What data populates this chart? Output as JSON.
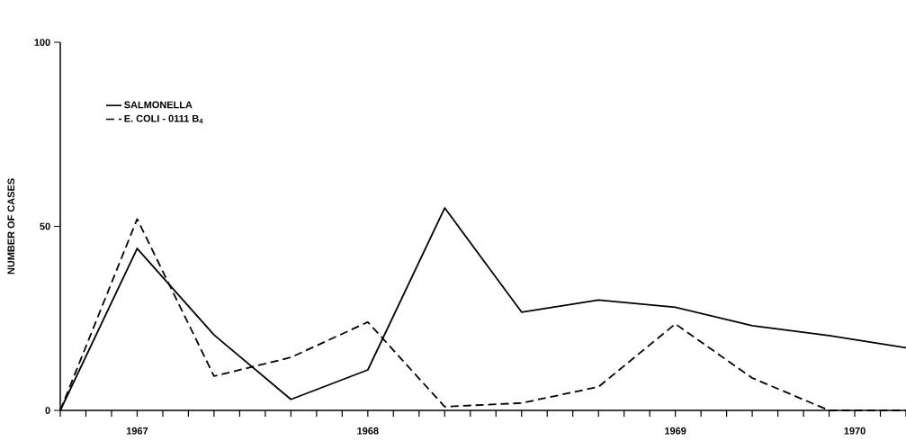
{
  "chart_data": {
    "type": "line",
    "ylabel": "NUMBER OF CASES",
    "x": [
      "1967-07",
      "1967-10",
      "1968-01",
      "1968-04",
      "1968-07",
      "1968-10",
      "1969-01",
      "1969-04",
      "1969-07",
      "1969-10",
      "1970-01",
      "1970-04"
    ],
    "series": [
      {
        "name": "SALMONELLA",
        "color": "#000000",
        "line_style": "solid",
        "values": [
          0,
          44,
          20.5,
          3,
          11,
          55,
          26.7,
          30,
          28,
          23,
          20.3,
          17
        ]
      },
      {
        "name": "E. COLI - 0111 B$_{4}$",
        "color": "#000000",
        "line_style": "dashed",
        "values": [
          0,
          52,
          9.3,
          14.4,
          24,
          1,
          2,
          6.4,
          23.5,
          8.8,
          0,
          0
        ]
      }
    ],
    "xlim": [
      "1967-07",
      "1970-04"
    ],
    "ylim": [
      0,
      100
    ],
    "yticks": [
      0,
      50,
      100
    ],
    "xticks": [
      {
        "value": "1967-07",
        "label": null
      },
      {
        "value": "1967-08",
        "label": null
      },
      {
        "value": "1967-09",
        "label": null
      },
      {
        "value": "1967-10",
        "label": "1967"
      },
      {
        "value": "1967-11",
        "label": null
      },
      {
        "value": "1967-12",
        "label": null
      },
      {
        "value": "1968-01",
        "label": null
      },
      {
        "value": "1968-02",
        "label": null
      },
      {
        "value": "1968-03",
        "label": null
      },
      {
        "value": "1968-04",
        "label": null
      },
      {
        "value": "1968-05",
        "label": null
      },
      {
        "value": "1968-06",
        "label": null
      },
      {
        "value": "1968-07",
        "label": "1968"
      },
      {
        "value": "1968-08",
        "label": null
      },
      {
        "value": "1968-09",
        "label": null
      },
      {
        "value": "1968-10",
        "label": null
      },
      {
        "value": "1968-11",
        "label": null
      },
      {
        "value": "1968-12",
        "label": null
      },
      {
        "value": "1969-01",
        "label": null
      },
      {
        "value": "1969-02",
        "label": null
      },
      {
        "value": "1969-03",
        "label": null
      },
      {
        "value": "1969-04",
        "label": null
      },
      {
        "value": "1969-05",
        "label": null
      },
      {
        "value": "1969-06",
        "label": null
      },
      {
        "value": "1969-07",
        "label": "1969"
      },
      {
        "value": "1969-08",
        "label": null
      },
      {
        "value": "1969-09",
        "label": null
      },
      {
        "value": "1969-10",
        "label": null
      },
      {
        "value": "1969-11",
        "label": null
      },
      {
        "value": "1969-12",
        "label": null
      },
      {
        "value": "1970-01",
        "label": null
      },
      {
        "value": "1970-02",
        "label": "1970"
      },
      {
        "value": "1970-03",
        "label": null
      },
      {
        "value": "1970-04",
        "label": null
      }
    ],
    "legend": "top left",
    "grid": false,
    "marker": "none"
  }
}
